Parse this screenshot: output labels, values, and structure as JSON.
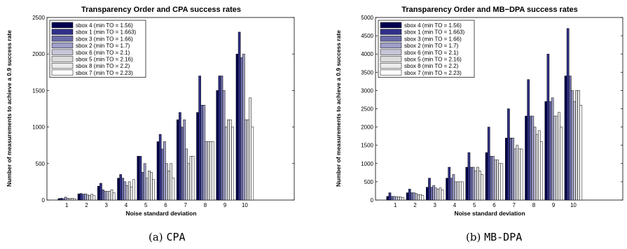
{
  "colors": [
    "#000050",
    "#303088",
    "#6a6aa8",
    "#9e9ec8",
    "#c6c6d8",
    "#dcdcdc",
    "#ececec",
    "#ffffff"
  ],
  "chart_data": [
    {
      "type": "bar",
      "title": "Transparency Order and CPA success rates",
      "xlabel": "Noise standard deviation",
      "ylabel": "Number of measurements to achieve a 0.9 success rate",
      "categories": [
        "1",
        "2",
        "3",
        "4",
        "5",
        "6",
        "7",
        "8",
        "9",
        "10"
      ],
      "ylim": [
        0,
        2500
      ],
      "yticks": [
        0,
        500,
        1000,
        1500,
        2000,
        2500
      ],
      "legend_position": "top-left",
      "series": [
        {
          "name": "sbox 4 (min TO = 1.56)",
          "values": [
            20,
            85,
            190,
            300,
            600,
            800,
            1100,
            1200,
            1500,
            2000
          ]
        },
        {
          "name": "sbox 1 (min TO = 1.663)",
          "values": [
            25,
            90,
            230,
            350,
            600,
            900,
            1200,
            1700,
            1700,
            2300
          ]
        },
        {
          "name": "sbox 3 (min TO = 1.66)",
          "values": [
            20,
            80,
            140,
            300,
            380,
            700,
            1000,
            1300,
            1700,
            1950
          ]
        },
        {
          "name": "sbox 2 (min TO = 1.7)",
          "values": [
            40,
            85,
            120,
            250,
            500,
            800,
            1100,
            1300,
            1500,
            2000
          ]
        },
        {
          "name": "sbox 6 (min TO = 2.1)",
          "values": [
            25,
            70,
            120,
            200,
            300,
            500,
            700,
            800,
            1000,
            1100
          ]
        },
        {
          "name": "sbox 5 (min TO = 2.16)",
          "values": [
            20,
            60,
            120,
            250,
            400,
            400,
            500,
            800,
            1100,
            1100
          ]
        },
        {
          "name": "sbox 8 (min TO = 2.2)",
          "values": [
            25,
            80,
            140,
            180,
            380,
            500,
            600,
            800,
            1100,
            1400
          ]
        },
        {
          "name": "sbox 7 (min TO = 2.23)",
          "values": [
            20,
            60,
            100,
            280,
            280,
            300,
            600,
            800,
            1000,
            1000
          ]
        }
      ]
    },
    {
      "type": "bar",
      "title": "Transparency Order and MB−DPA success rates",
      "xlabel": "Noise standard deviation",
      "ylabel": "Number of measurements to achieve a 0.9 success rate",
      "categories": [
        "1",
        "2",
        "3",
        "4",
        "5",
        "6",
        "7",
        "8",
        "9",
        "10"
      ],
      "ylim": [
        0,
        5000
      ],
      "yticks": [
        0,
        500,
        1000,
        1500,
        2000,
        2500,
        3000,
        3500,
        4000,
        4500,
        5000
      ],
      "legend_position": "top-left",
      "series": [
        {
          "name": "sbox 4 (min TO = 1.56)",
          "values": [
            100,
            200,
            350,
            600,
            900,
            1300,
            1700,
            2300,
            2700,
            3400
          ]
        },
        {
          "name": "sbox 1 (min TO = 1.663)",
          "values": [
            200,
            300,
            600,
            900,
            1300,
            2000,
            2500,
            3300,
            4000,
            4700
          ]
        },
        {
          "name": "sbox 3 (min TO = 1.66)",
          "values": [
            100,
            200,
            350,
            600,
            900,
            1200,
            1700,
            2300,
            2700,
            3400
          ]
        },
        {
          "name": "sbox 2 (min TO = 1.7)",
          "values": [
            100,
            200,
            400,
            700,
            900,
            1200,
            1700,
            2300,
            2800,
            3000
          ]
        },
        {
          "name": "sbox 6 (min TO = 2.1)",
          "values": [
            90,
            180,
            330,
            500,
            800,
            1100,
            1400,
            2000,
            2300,
            2700
          ]
        },
        {
          "name": "sbox 5 (min TO = 2.16)",
          "values": [
            90,
            150,
            300,
            500,
            900,
            1100,
            1500,
            1800,
            2300,
            3000
          ]
        },
        {
          "name": "sbox 8 (min TO = 2.2)",
          "values": [
            80,
            150,
            330,
            500,
            800,
            1000,
            1400,
            1900,
            2400,
            3000
          ]
        },
        {
          "name": "sbox 7 (min TO = 2.23)",
          "values": [
            70,
            130,
            280,
            500,
            700,
            1000,
            1400,
            1600,
            2000,
            2600
          ]
        }
      ]
    }
  ],
  "captions": [
    {
      "label": "(a)",
      "method": "CPA"
    },
    {
      "label": "(b)",
      "method": "MB-DPA"
    }
  ]
}
